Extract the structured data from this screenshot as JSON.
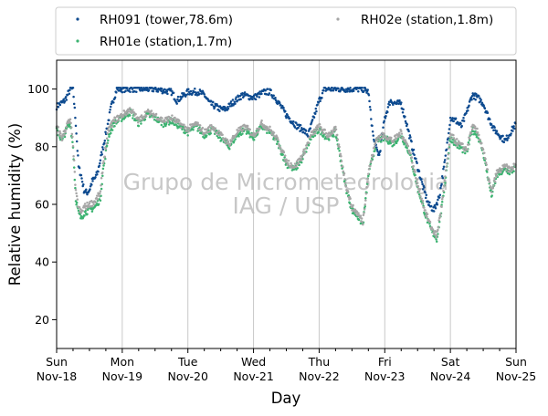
{
  "chart_data": {
    "type": "scatter",
    "xlabel": "Day",
    "ylabel": "Relative humidity (%)",
    "ylim": [
      10,
      110
    ],
    "xlim": [
      "2018-11-18T00:00",
      "2018-11-25T00:00"
    ],
    "yticks": [
      20,
      40,
      60,
      80,
      100
    ],
    "xticks": [
      {
        "label": [
          "Sun",
          "Nov-18"
        ]
      },
      {
        "label": [
          "Mon",
          "Nov-19"
        ]
      },
      {
        "label": [
          "Tue",
          "Nov-20"
        ]
      },
      {
        "label": [
          "Wed",
          "Nov-21"
        ]
      },
      {
        "label": [
          "Thu",
          "Nov-22"
        ]
      },
      {
        "label": [
          "Fri",
          "Nov-23"
        ]
      },
      {
        "label": [
          "Sat",
          "Nov-24"
        ]
      },
      {
        "label": [
          "Sun",
          "Nov-25"
        ]
      }
    ],
    "grid": "vertical at day boundaries",
    "legend_position": "top, outside plot, two columns",
    "watermark": [
      "Grupo de Micrometeorologia",
      "IAG / USP"
    ],
    "series": [
      {
        "name": "RH091 (tower,78.6m)",
        "color": "#0d4a8f",
        "points": [
          [
            "2018-11-18T00:00",
            94
          ],
          [
            "2018-11-18T03:00",
            96
          ],
          [
            "2018-11-18T05:00",
            100
          ],
          [
            "2018-11-18T06:00",
            100
          ],
          [
            "2018-11-18T07:00",
            88
          ],
          [
            "2018-11-18T08:00",
            73
          ],
          [
            "2018-11-18T09:00",
            70
          ],
          [
            "2018-11-18T10:00",
            65
          ],
          [
            "2018-11-18T11:00",
            64
          ],
          [
            "2018-11-18T12:00",
            65
          ],
          [
            "2018-11-18T13:00",
            68
          ],
          [
            "2018-11-18T14:00",
            69
          ],
          [
            "2018-11-18T15:00",
            71
          ],
          [
            "2018-11-18T17:00",
            80
          ],
          [
            "2018-11-18T20:00",
            94
          ],
          [
            "2018-11-18T22:00",
            100
          ],
          [
            "2018-11-19T00:00",
            100
          ],
          [
            "2018-11-19T06:00",
            100
          ],
          [
            "2018-11-19T12:00",
            100
          ],
          [
            "2018-11-19T18:00",
            99
          ],
          [
            "2018-11-19T20:00",
            96
          ],
          [
            "2018-11-20T00:00",
            99
          ],
          [
            "2018-11-20T04:00",
            99
          ],
          [
            "2018-11-20T06:00",
            98
          ],
          [
            "2018-11-20T08:00",
            95
          ],
          [
            "2018-11-20T10:00",
            94
          ],
          [
            "2018-11-20T12:00",
            93
          ],
          [
            "2018-11-20T14:00",
            93
          ],
          [
            "2018-11-20T16:00",
            95
          ],
          [
            "2018-11-20T20:00",
            98
          ],
          [
            "2018-11-21T00:00",
            97
          ],
          [
            "2018-11-21T04:00",
            99
          ],
          [
            "2018-11-21T06:00",
            99
          ],
          [
            "2018-11-21T08:00",
            97
          ],
          [
            "2018-11-21T10:00",
            94
          ],
          [
            "2018-11-21T12:00",
            91
          ],
          [
            "2018-11-21T14:00",
            89
          ],
          [
            "2018-11-21T16:00",
            87
          ],
          [
            "2018-11-21T18:00",
            86
          ],
          [
            "2018-11-21T20:00",
            84
          ],
          [
            "2018-11-21T22:00",
            90
          ],
          [
            "2018-11-22T00:00",
            96
          ],
          [
            "2018-11-22T02:00",
            100
          ],
          [
            "2018-11-22T06:00",
            100
          ],
          [
            "2018-11-22T12:00",
            100
          ],
          [
            "2018-11-22T16:00",
            100
          ],
          [
            "2018-11-22T18:00",
            99
          ],
          [
            "2018-11-22T19:00",
            90
          ],
          [
            "2018-11-22T20:00",
            82
          ],
          [
            "2018-11-22T21:00",
            79
          ],
          [
            "2018-11-22T22:00",
            77
          ],
          [
            "2018-11-23T00:00",
            90
          ],
          [
            "2018-11-23T02:00",
            96
          ],
          [
            "2018-11-23T04:00",
            95
          ],
          [
            "2018-11-23T06:00",
            95
          ],
          [
            "2018-11-23T08:00",
            88
          ],
          [
            "2018-11-23T10:00",
            80
          ],
          [
            "2018-11-23T12:00",
            73
          ],
          [
            "2018-11-23T14:00",
            66
          ],
          [
            "2018-11-23T16:00",
            60
          ],
          [
            "2018-11-23T18:00",
            58
          ],
          [
            "2018-11-23T20:00",
            63
          ],
          [
            "2018-11-23T22:00",
            75
          ],
          [
            "2018-11-24T00:00",
            90
          ],
          [
            "2018-11-24T02:00",
            89
          ],
          [
            "2018-11-24T04:00",
            87
          ],
          [
            "2018-11-24T06:00",
            92
          ],
          [
            "2018-11-24T08:00",
            98
          ],
          [
            "2018-11-24T10:00",
            97
          ],
          [
            "2018-11-24T12:00",
            95
          ],
          [
            "2018-11-24T14:00",
            90
          ],
          [
            "2018-11-24T16:00",
            86
          ],
          [
            "2018-11-24T18:00",
            84
          ],
          [
            "2018-11-24T20:00",
            82
          ],
          [
            "2018-11-24T22:00",
            85
          ],
          [
            "2018-11-25T00:00",
            88
          ]
        ]
      },
      {
        "name": "RH01e (station,1.7m)",
        "color": "#3cb371",
        "points": [
          [
            "2018-11-18T00:00",
            86
          ],
          [
            "2018-11-18T01:00",
            84
          ],
          [
            "2018-11-18T02:00",
            82
          ],
          [
            "2018-11-18T04:00",
            87
          ],
          [
            "2018-11-18T05:00",
            88
          ],
          [
            "2018-11-18T06:00",
            80
          ],
          [
            "2018-11-18T07:00",
            62
          ],
          [
            "2018-11-18T08:00",
            57
          ],
          [
            "2018-11-18T09:00",
            55
          ],
          [
            "2018-11-18T10:00",
            57
          ],
          [
            "2018-11-18T12:00",
            58
          ],
          [
            "2018-11-18T14:00",
            59
          ],
          [
            "2018-11-18T16:00",
            62
          ],
          [
            "2018-11-18T17:00",
            72
          ],
          [
            "2018-11-18T19:00",
            84
          ],
          [
            "2018-11-18T21:00",
            88
          ],
          [
            "2018-11-19T00:00",
            90
          ],
          [
            "2018-11-19T03:00",
            92
          ],
          [
            "2018-11-19T06:00",
            88
          ],
          [
            "2018-11-19T09:00",
            91
          ],
          [
            "2018-11-19T12:00",
            90
          ],
          [
            "2018-11-19T15:00",
            88
          ],
          [
            "2018-11-19T18:00",
            89
          ],
          [
            "2018-11-20T00:00",
            85
          ],
          [
            "2018-11-20T03:00",
            87
          ],
          [
            "2018-11-20T06:00",
            84
          ],
          [
            "2018-11-20T09:00",
            86
          ],
          [
            "2018-11-20T12:00",
            83
          ],
          [
            "2018-11-20T15:00",
            80
          ],
          [
            "2018-11-20T18:00",
            84
          ],
          [
            "2018-11-20T21:00",
            86
          ],
          [
            "2018-11-21T00:00",
            83
          ],
          [
            "2018-11-21T03:00",
            87
          ],
          [
            "2018-11-21T06:00",
            85
          ],
          [
            "2018-11-21T09:00",
            81
          ],
          [
            "2018-11-21T12:00",
            74
          ],
          [
            "2018-11-21T15:00",
            72
          ],
          [
            "2018-11-21T18:00",
            76
          ],
          [
            "2018-11-21T21:00",
            83
          ],
          [
            "2018-11-22T00:00",
            86
          ],
          [
            "2018-11-22T03:00",
            83
          ],
          [
            "2018-11-22T06:00",
            85
          ],
          [
            "2018-11-22T08:00",
            75
          ],
          [
            "2018-11-22T10:00",
            65
          ],
          [
            "2018-11-22T12:00",
            58
          ],
          [
            "2018-11-22T14:00",
            56
          ],
          [
            "2018-11-22T16:00",
            53
          ],
          [
            "2018-11-22T18:00",
            70
          ],
          [
            "2018-11-22T21:00",
            82
          ],
          [
            "2018-11-23T00:00",
            83
          ],
          [
            "2018-11-23T03:00",
            81
          ],
          [
            "2018-11-23T06:00",
            84
          ],
          [
            "2018-11-23T09:00",
            78
          ],
          [
            "2018-11-23T12:00",
            66
          ],
          [
            "2018-11-23T15:00",
            56
          ],
          [
            "2018-11-23T17:00",
            51
          ],
          [
            "2018-11-23T19:00",
            48
          ],
          [
            "2018-11-23T21:00",
            60
          ],
          [
            "2018-11-24T00:00",
            83
          ],
          [
            "2018-11-24T03:00",
            80
          ],
          [
            "2018-11-24T06:00",
            78
          ],
          [
            "2018-11-24T08:00",
            86
          ],
          [
            "2018-11-24T10:00",
            84
          ],
          [
            "2018-11-24T12:00",
            78
          ],
          [
            "2018-11-24T14:00",
            68
          ],
          [
            "2018-11-24T15:00",
            63
          ],
          [
            "2018-11-24T17:00",
            70
          ],
          [
            "2018-11-24T20:00",
            72
          ],
          [
            "2018-11-24T22:00",
            71
          ],
          [
            "2018-11-25T00:00",
            73
          ]
        ]
      },
      {
        "name": "RH02e (station,1.8m)",
        "color": "#a6a6a6",
        "points": [
          [
            "2018-11-18T00:00",
            87
          ],
          [
            "2018-11-18T01:00",
            85
          ],
          [
            "2018-11-18T02:00",
            83
          ],
          [
            "2018-11-18T04:00",
            88
          ],
          [
            "2018-11-18T05:00",
            89
          ],
          [
            "2018-11-18T06:00",
            81
          ],
          [
            "2018-11-18T07:00",
            64
          ],
          [
            "2018-11-18T08:00",
            59
          ],
          [
            "2018-11-18T09:00",
            57
          ],
          [
            "2018-11-18T10:00",
            59
          ],
          [
            "2018-11-18T12:00",
            60
          ],
          [
            "2018-11-18T14:00",
            61
          ],
          [
            "2018-11-18T16:00",
            64
          ],
          [
            "2018-11-18T17:00",
            74
          ],
          [
            "2018-11-18T19:00",
            86
          ],
          [
            "2018-11-18T21:00",
            89
          ],
          [
            "2018-11-19T00:00",
            91
          ],
          [
            "2018-11-19T03:00",
            93
          ],
          [
            "2018-11-19T06:00",
            89
          ],
          [
            "2018-11-19T09:00",
            92
          ],
          [
            "2018-11-19T12:00",
            91
          ],
          [
            "2018-11-19T15:00",
            89
          ],
          [
            "2018-11-19T18:00",
            90
          ],
          [
            "2018-11-20T00:00",
            86
          ],
          [
            "2018-11-20T03:00",
            88
          ],
          [
            "2018-11-20T06:00",
            85
          ],
          [
            "2018-11-20T09:00",
            87
          ],
          [
            "2018-11-20T12:00",
            84
          ],
          [
            "2018-11-20T15:00",
            81
          ],
          [
            "2018-11-20T18:00",
            85
          ],
          [
            "2018-11-20T21:00",
            87
          ],
          [
            "2018-11-21T00:00",
            84
          ],
          [
            "2018-11-21T03:00",
            88
          ],
          [
            "2018-11-21T06:00",
            86
          ],
          [
            "2018-11-21T09:00",
            82
          ],
          [
            "2018-11-21T12:00",
            75
          ],
          [
            "2018-11-21T15:00",
            73
          ],
          [
            "2018-11-21T18:00",
            77
          ],
          [
            "2018-11-21T21:00",
            84
          ],
          [
            "2018-11-22T00:00",
            87
          ],
          [
            "2018-11-22T03:00",
            84
          ],
          [
            "2018-11-22T06:00",
            86
          ],
          [
            "2018-11-22T08:00",
            76
          ],
          [
            "2018-11-22T10:00",
            66
          ],
          [
            "2018-11-22T12:00",
            59
          ],
          [
            "2018-11-22T14:00",
            57
          ],
          [
            "2018-11-22T16:00",
            54
          ],
          [
            "2018-11-22T18:00",
            71
          ],
          [
            "2018-11-22T21:00",
            83
          ],
          [
            "2018-11-23T00:00",
            84
          ],
          [
            "2018-11-23T03:00",
            82
          ],
          [
            "2018-11-23T06:00",
            85
          ],
          [
            "2018-11-23T09:00",
            79
          ],
          [
            "2018-11-23T12:00",
            67
          ],
          [
            "2018-11-23T15:00",
            57
          ],
          [
            "2018-11-23T17:00",
            52
          ],
          [
            "2018-11-23T19:00",
            49
          ],
          [
            "2018-11-23T21:00",
            61
          ],
          [
            "2018-11-24T00:00",
            84
          ],
          [
            "2018-11-24T03:00",
            81
          ],
          [
            "2018-11-24T06:00",
            79
          ],
          [
            "2018-11-24T08:00",
            87
          ],
          [
            "2018-11-24T10:00",
            85
          ],
          [
            "2018-11-24T12:00",
            79
          ],
          [
            "2018-11-24T14:00",
            69
          ],
          [
            "2018-11-24T15:00",
            64
          ],
          [
            "2018-11-24T17:00",
            71
          ],
          [
            "2018-11-24T20:00",
            73
          ],
          [
            "2018-11-24T22:00",
            72
          ],
          [
            "2018-11-25T00:00",
            74
          ]
        ]
      }
    ]
  }
}
